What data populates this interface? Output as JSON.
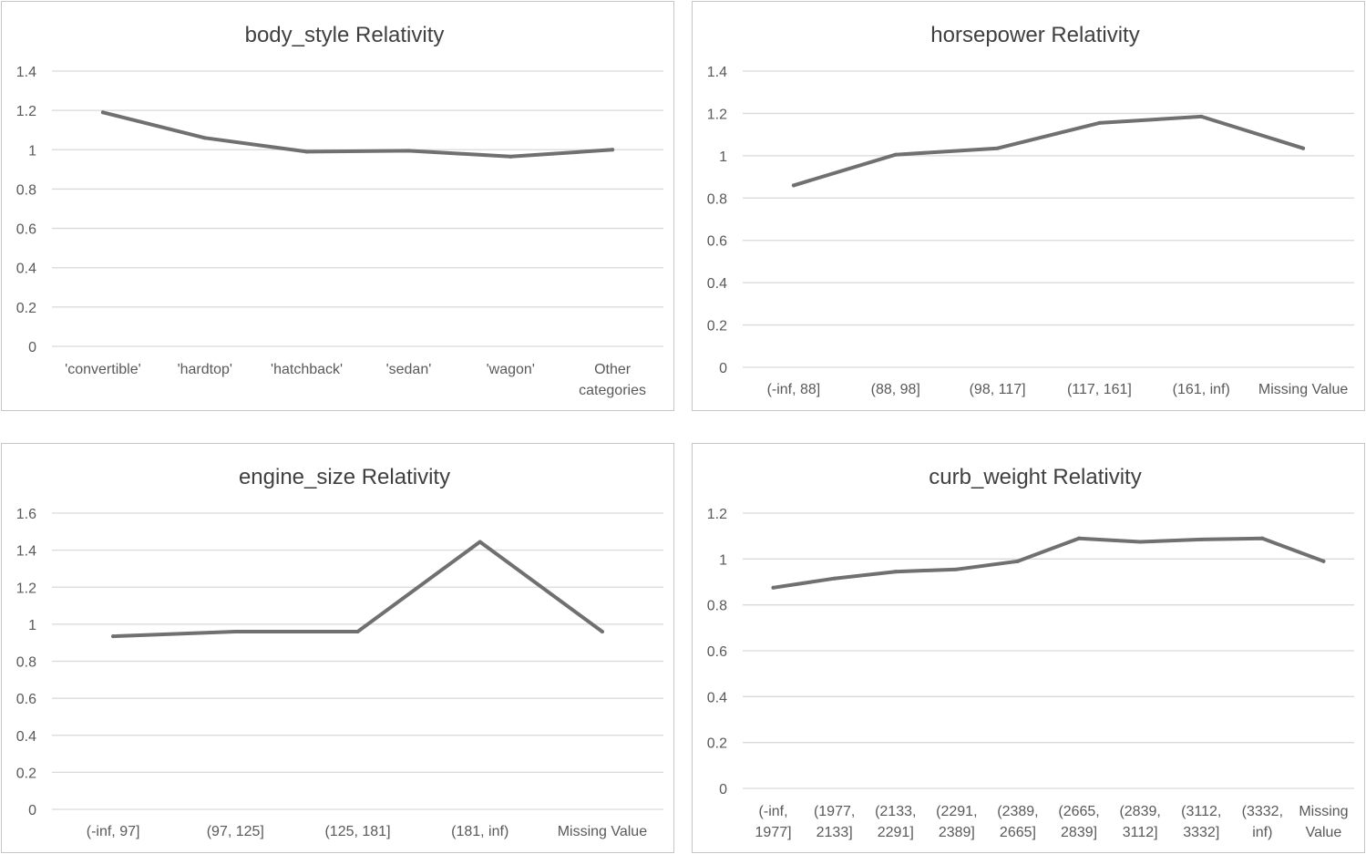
{
  "chart_data": [
    {
      "type": "line",
      "title": "body_style Relativity",
      "categories": [
        "'convertible'",
        "'hardtop'",
        "'hatchback'",
        "'sedan'",
        "'wagon'",
        "Other categories"
      ],
      "category_lines": [
        [
          "'convertible'"
        ],
        [
          "'hardtop'"
        ],
        [
          "'hatchback'"
        ],
        [
          "'sedan'"
        ],
        [
          "'wagon'"
        ],
        [
          "Other",
          "categories"
        ]
      ],
      "values": [
        1.19,
        1.06,
        0.99,
        0.995,
        0.965,
        1.0
      ],
      "ylim": [
        0,
        1.4
      ],
      "yticks": [
        "0",
        "0.2",
        "0.4",
        "0.6",
        "0.8",
        "1",
        "1.2",
        "1.4"
      ],
      "color": "#707070",
      "grid": true,
      "legend": "none"
    },
    {
      "type": "line",
      "title": "horsepower Relativity",
      "categories": [
        "(-inf, 88]",
        "(88, 98]",
        "(98, 117]",
        "(117, 161]",
        "(161, inf)",
        "Missing Value"
      ],
      "category_lines": [
        [
          "(-inf, 88]"
        ],
        [
          "(88, 98]"
        ],
        [
          "(98, 117]"
        ],
        [
          "(117, 161]"
        ],
        [
          "(161, inf)"
        ],
        [
          "Missing Value"
        ]
      ],
      "values": [
        0.86,
        1.005,
        1.035,
        1.155,
        1.185,
        1.035
      ],
      "ylim": [
        0,
        1.4
      ],
      "yticks": [
        "0",
        "0.2",
        "0.4",
        "0.6",
        "0.8",
        "1",
        "1.2",
        "1.4"
      ],
      "color": "#707070",
      "grid": true,
      "legend": "none"
    },
    {
      "type": "line",
      "title": "engine_size Relativity",
      "categories": [
        "(-inf, 97]",
        "(97, 125]",
        "(125, 181]",
        "(181, inf)",
        "Missing Value"
      ],
      "category_lines": [
        [
          "(-inf, 97]"
        ],
        [
          "(97, 125]"
        ],
        [
          "(125, 181]"
        ],
        [
          "(181, inf)"
        ],
        [
          "Missing Value"
        ]
      ],
      "values": [
        0.935,
        0.96,
        0.96,
        1.445,
        0.96
      ],
      "ylim": [
        0,
        1.6
      ],
      "yticks": [
        "0",
        "0.2",
        "0.4",
        "0.6",
        "0.8",
        "1",
        "1.2",
        "1.4",
        "1.6"
      ],
      "color": "#707070",
      "grid": true,
      "legend": "none"
    },
    {
      "type": "line",
      "title": "curb_weight Relativity",
      "categories": [
        "(-inf, 1977]",
        "(1977, 2133]",
        "(2133, 2291]",
        "(2291, 2389]",
        "(2389, 2665]",
        "(2665, 2839]",
        "(2839, 3112]",
        "(3112, 3332]",
        "(3332, inf)",
        "Missing Value"
      ],
      "category_lines": [
        [
          "(-inf,",
          "1977]"
        ],
        [
          "(1977,",
          "2133]"
        ],
        [
          "(2133,",
          "2291]"
        ],
        [
          "(2291,",
          "2389]"
        ],
        [
          "(2389,",
          "2665]"
        ],
        [
          "(2665,",
          "2839]"
        ],
        [
          "(2839,",
          "3112]"
        ],
        [
          "(3112,",
          "3332]"
        ],
        [
          "(3332,",
          "inf)"
        ],
        [
          "Missing",
          "Value"
        ]
      ],
      "values": [
        0.875,
        0.915,
        0.945,
        0.955,
        0.99,
        1.09,
        1.075,
        1.085,
        1.09,
        0.99
      ],
      "ylim": [
        0,
        1.2
      ],
      "yticks": [
        "0",
        "0.2",
        "0.4",
        "0.6",
        "0.8",
        "1",
        "1.2"
      ],
      "color": "#707070",
      "grid": true,
      "legend": "none"
    }
  ]
}
